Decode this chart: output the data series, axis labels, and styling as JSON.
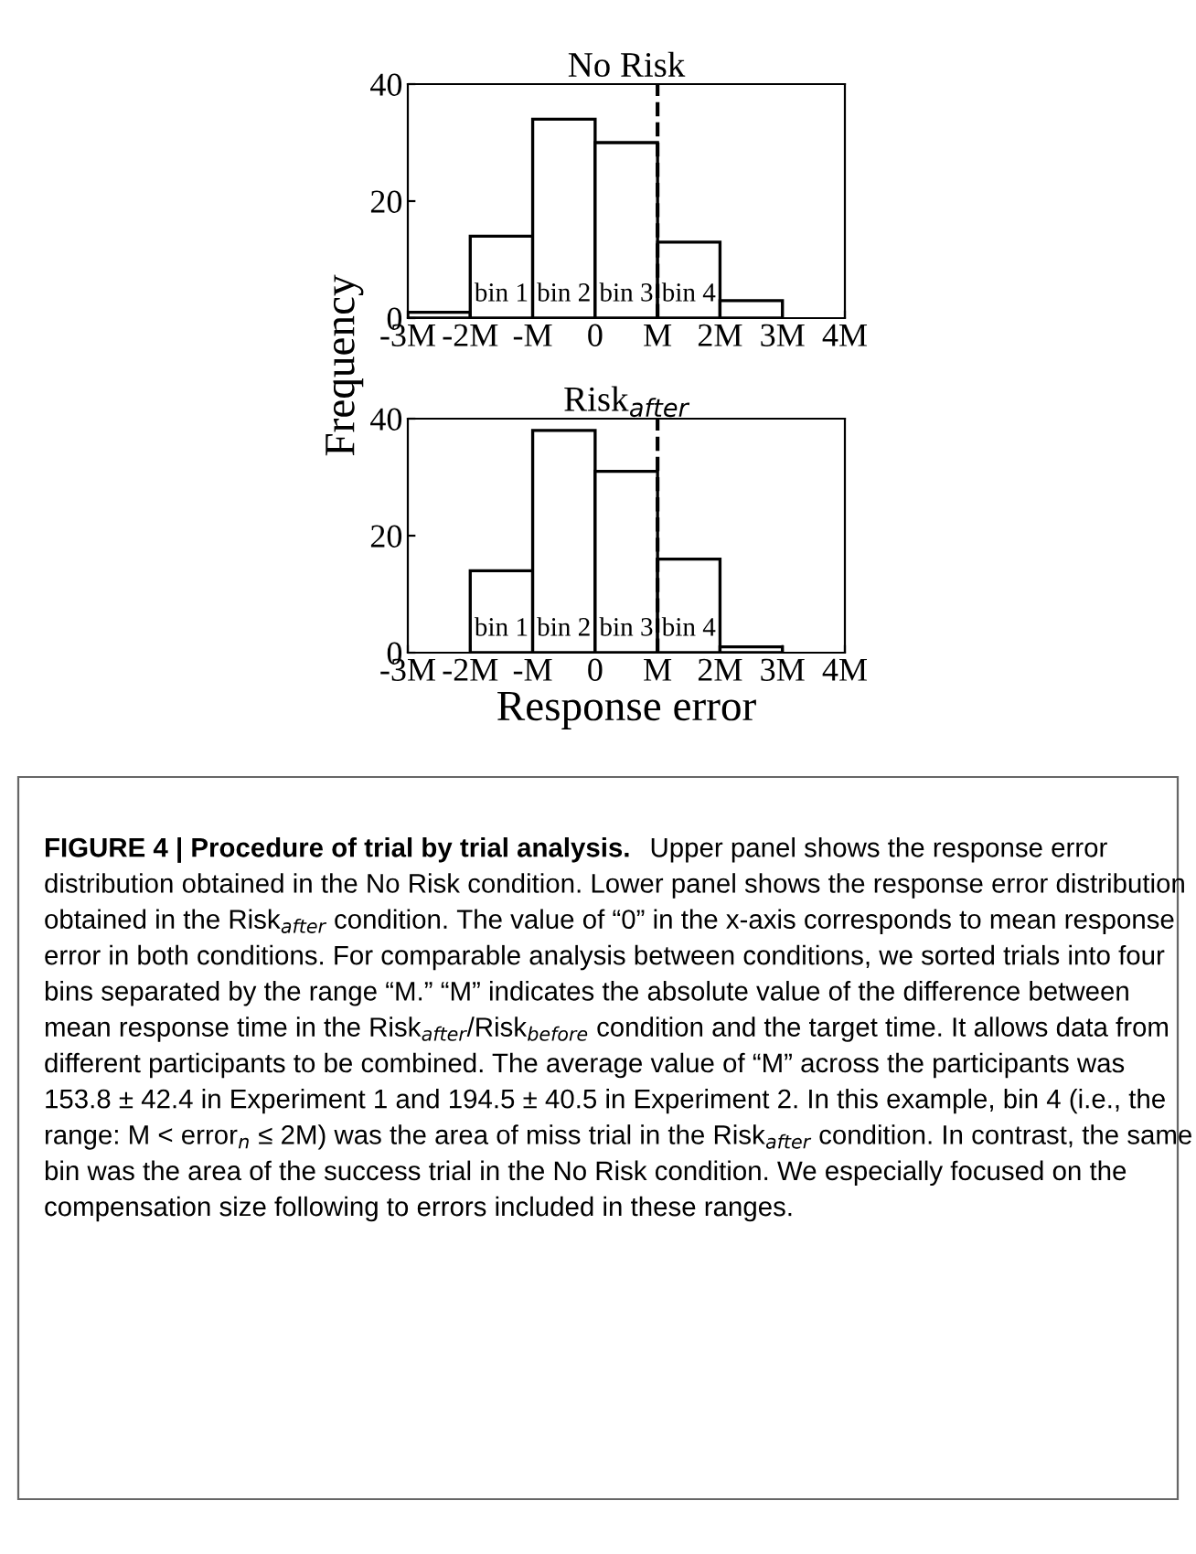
{
  "chart_data": [
    {
      "type": "histogram",
      "title": "No Risk",
      "ylabel": "Frequency",
      "bins": [
        -3,
        -2,
        -1,
        0,
        1,
        2,
        3
      ],
      "values": [
        1,
        14,
        34,
        30,
        13,
        3
      ],
      "color": "#ffffff",
      "xlim": [
        -3,
        4
      ],
      "xticks": [
        {
          "value": -3,
          "label": "-3M"
        },
        {
          "value": -2,
          "label": "-2M"
        },
        {
          "value": -1,
          "label": "-M"
        },
        0,
        {
          "value": 1,
          "label": "M"
        },
        {
          "value": 2,
          "label": "2M"
        },
        {
          "value": 3,
          "label": "3M"
        },
        {
          "value": 4,
          "label": "4M"
        }
      ],
      "ylim": [
        0,
        40
      ],
      "yticks": [
        0,
        20,
        40
      ],
      "ref_lines": [
        {
          "axis": "x",
          "value": 1,
          "line_style": "dashed"
        }
      ],
      "annotations": [
        "bin 1",
        "bin 2",
        "bin 3",
        "bin 4"
      ]
    },
    {
      "type": "histogram",
      "title": "Risk$_{after}$",
      "xlabel": "Response error",
      "bins": [
        -3,
        -2,
        -1,
        0,
        1,
        2,
        3
      ],
      "values": [
        0,
        14,
        38,
        31,
        16,
        1
      ],
      "color": "#ffffff",
      "xlim": [
        -3,
        4
      ],
      "xticks": [
        {
          "value": -3,
          "label": "-3M"
        },
        {
          "value": -2,
          "label": "-2M"
        },
        {
          "value": -1,
          "label": "-M"
        },
        0,
        {
          "value": 1,
          "label": "M"
        },
        {
          "value": 2,
          "label": "2M"
        },
        {
          "value": 3,
          "label": "3M"
        },
        {
          "value": 4,
          "label": "4M"
        }
      ],
      "ylim": [
        0,
        40
      ],
      "yticks": [
        0,
        20,
        40
      ],
      "ref_lines": [
        {
          "axis": "x",
          "value": 1,
          "line_style": "dashed"
        }
      ],
      "annotations": [
        "bin 1",
        "bin 2",
        "bin 3",
        "bin 4",
        "FIGURE 4 | Procedure of trial by trial analysis.",
        "Upper panel shows the response error distribution obtained in the No Risk condition. Lower panel shows the response error distribution obtained in the Risk$_{after}$ condition. The value of “0” in the x-axis corresponds to mean response error in both conditions. For comparable analysis between conditions, we sorted trials into four bins separated by the range “M.” “M” indicates the absolute value of the difference between mean response time in the Risk$_{after}$/Risk$_{before}$ condition and the target time. It allows data from different participants to be combined. The average value of “M” across the participants was 153.8 ± 42.4 in Experiment 1 and 194.5 ± 40.5 in Experiment 2. In this example, bin 4 (i.e., the range: M < error$_{n}$ ≤ 2M) was the area of miss trial in the Risk$_{after}$ condition. In contrast, the same bin was the area of the success trial in the No Risk condition. We especially focused on the compensation size following to errors included in these ranges."
      ]
    }
  ]
}
